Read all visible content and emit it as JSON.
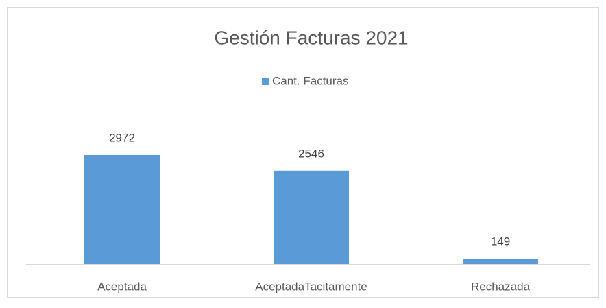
{
  "chart_data": {
    "type": "bar",
    "title": "Gestión Facturas 2021",
    "categories": [
      "Aceptada",
      "AceptadaTacitamente",
      "Rechazada"
    ],
    "series": [
      {
        "name": "Cant. Facturas",
        "color": "#5b9bd5",
        "values": [
          2972,
          2546,
          149
        ]
      }
    ],
    "legend": "top"
  }
}
